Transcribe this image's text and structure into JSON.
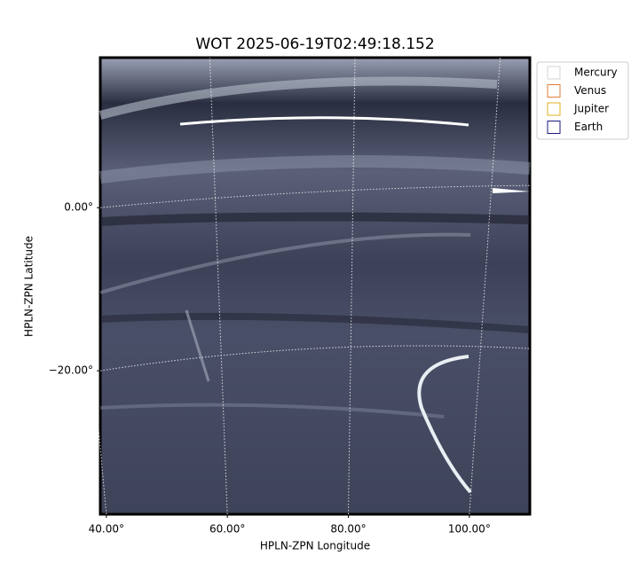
{
  "chart_data": {
    "type": "image",
    "title": "WOT 2025-06-19T02:49:18.152",
    "xlabel": "HPLN-ZPN Longitude",
    "ylabel": "HPLN-ZPN Latitude",
    "xlim": [
      39,
      110
    ],
    "ylim": [
      -37.6,
      18.4
    ],
    "xticks": [
      {
        "value": 40,
        "label": "40.00°"
      },
      {
        "value": 60,
        "label": "60.00°"
      },
      {
        "value": 80,
        "label": "80.00°"
      },
      {
        "value": 100,
        "label": "100.00°"
      }
    ],
    "yticks": [
      {
        "value": 0,
        "label": "0.00°"
      },
      {
        "value": -20,
        "label": "−20.00°"
      }
    ],
    "grid": true,
    "legend": "upper right",
    "series": [
      {
        "name": "Mercury",
        "color": "#d3d3d3"
      },
      {
        "name": "Venus",
        "color": "#e07b39"
      },
      {
        "name": "Jupiter",
        "color": "#e0b020"
      },
      {
        "name": "Earth",
        "color": "#1a1a80"
      }
    ]
  }
}
